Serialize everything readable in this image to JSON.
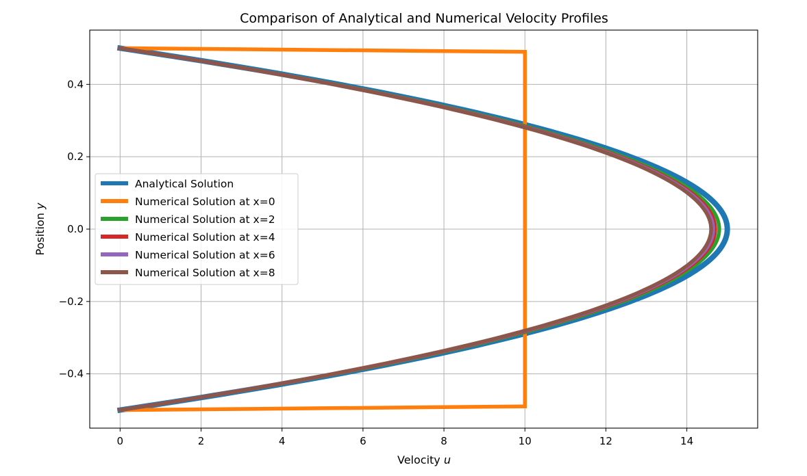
{
  "chart_data": {
    "type": "line",
    "title": "Comparison of Analytical and Numerical Velocity Profiles",
    "xlabel": "Velocity",
    "xlabel_var": "u",
    "ylabel": "Position",
    "ylabel_var": "y",
    "xlim": [
      -0.75,
      15.75
    ],
    "ylim": [
      -0.55,
      0.55
    ],
    "xticks": [
      0,
      2,
      4,
      6,
      8,
      10,
      12,
      14
    ],
    "xtick_labels": [
      "0",
      "2",
      "4",
      "6",
      "8",
      "10",
      "12",
      "14"
    ],
    "yticks": [
      -0.4,
      -0.2,
      0.0,
      0.2,
      0.4
    ],
    "ytick_labels": [
      "−0.4",
      "−0.2",
      "0.0",
      "0.2",
      "0.4"
    ],
    "grid": true,
    "legend_position": "center-left",
    "series": [
      {
        "name": "Analytical Solution",
        "color": "#1f77b4",
        "profile": "parabolic",
        "u_max": 15.0,
        "points": [
          [
            0.0,
            -0.5
          ],
          [
            5.4,
            -0.4
          ],
          [
            9.6,
            -0.3
          ],
          [
            12.6,
            -0.2
          ],
          [
            14.4,
            -0.1
          ],
          [
            15.0,
            0.0
          ],
          [
            14.4,
            0.1
          ],
          [
            12.6,
            0.2
          ],
          [
            9.6,
            0.3
          ],
          [
            5.4,
            0.4
          ],
          [
            0.0,
            0.5
          ]
        ]
      },
      {
        "name": "Numerical Solution at x=0",
        "color": "#ff7f0e",
        "profile": "plug",
        "points": [
          [
            0.0,
            -0.5
          ],
          [
            10.0,
            -0.49
          ],
          [
            10.0,
            0.49
          ],
          [
            0.0,
            0.5
          ]
        ]
      },
      {
        "name": "Numerical Solution at x=2",
        "color": "#2ca02c",
        "profile": "parabolic",
        "u_max": 14.8,
        "points": [
          [
            0.0,
            -0.5
          ],
          [
            5.35,
            -0.4
          ],
          [
            9.45,
            -0.3
          ],
          [
            12.4,
            -0.2
          ],
          [
            14.2,
            -0.1
          ],
          [
            14.8,
            0.0
          ],
          [
            14.2,
            0.1
          ],
          [
            12.4,
            0.2
          ],
          [
            9.45,
            0.3
          ],
          [
            5.35,
            0.4
          ],
          [
            0.0,
            0.5
          ]
        ]
      },
      {
        "name": "Numerical Solution at x=4",
        "color": "#d62728",
        "profile": "parabolic",
        "u_max": 14.7,
        "points": [
          [
            0.0,
            -0.5
          ],
          [
            5.3,
            -0.4
          ],
          [
            9.4,
            -0.3
          ],
          [
            12.3,
            -0.2
          ],
          [
            14.1,
            -0.1
          ],
          [
            14.7,
            0.0
          ],
          [
            14.1,
            0.1
          ],
          [
            12.3,
            0.2
          ],
          [
            9.4,
            0.3
          ],
          [
            5.3,
            0.4
          ],
          [
            0.0,
            0.5
          ]
        ]
      },
      {
        "name": "Numerical Solution at x=6",
        "color": "#9467bd",
        "profile": "parabolic",
        "u_max": 14.65,
        "points": [
          [
            0.0,
            -0.5
          ],
          [
            5.3,
            -0.4
          ],
          [
            9.35,
            -0.3
          ],
          [
            12.3,
            -0.2
          ],
          [
            14.05,
            -0.1
          ],
          [
            14.65,
            0.0
          ],
          [
            14.05,
            0.1
          ],
          [
            12.3,
            0.2
          ],
          [
            9.35,
            0.3
          ],
          [
            5.3,
            0.4
          ],
          [
            0.0,
            0.5
          ]
        ]
      },
      {
        "name": "Numerical Solution at x=8",
        "color": "#8c564b",
        "profile": "parabolic",
        "u_max": 14.6,
        "points": [
          [
            0.0,
            -0.5
          ],
          [
            5.25,
            -0.4
          ],
          [
            9.35,
            -0.3
          ],
          [
            12.25,
            -0.2
          ],
          [
            14.0,
            -0.1
          ],
          [
            14.6,
            0.0
          ],
          [
            14.0,
            0.1
          ],
          [
            12.25,
            0.2
          ],
          [
            9.35,
            0.3
          ],
          [
            5.25,
            0.4
          ],
          [
            0.0,
            0.5
          ]
        ]
      }
    ]
  }
}
